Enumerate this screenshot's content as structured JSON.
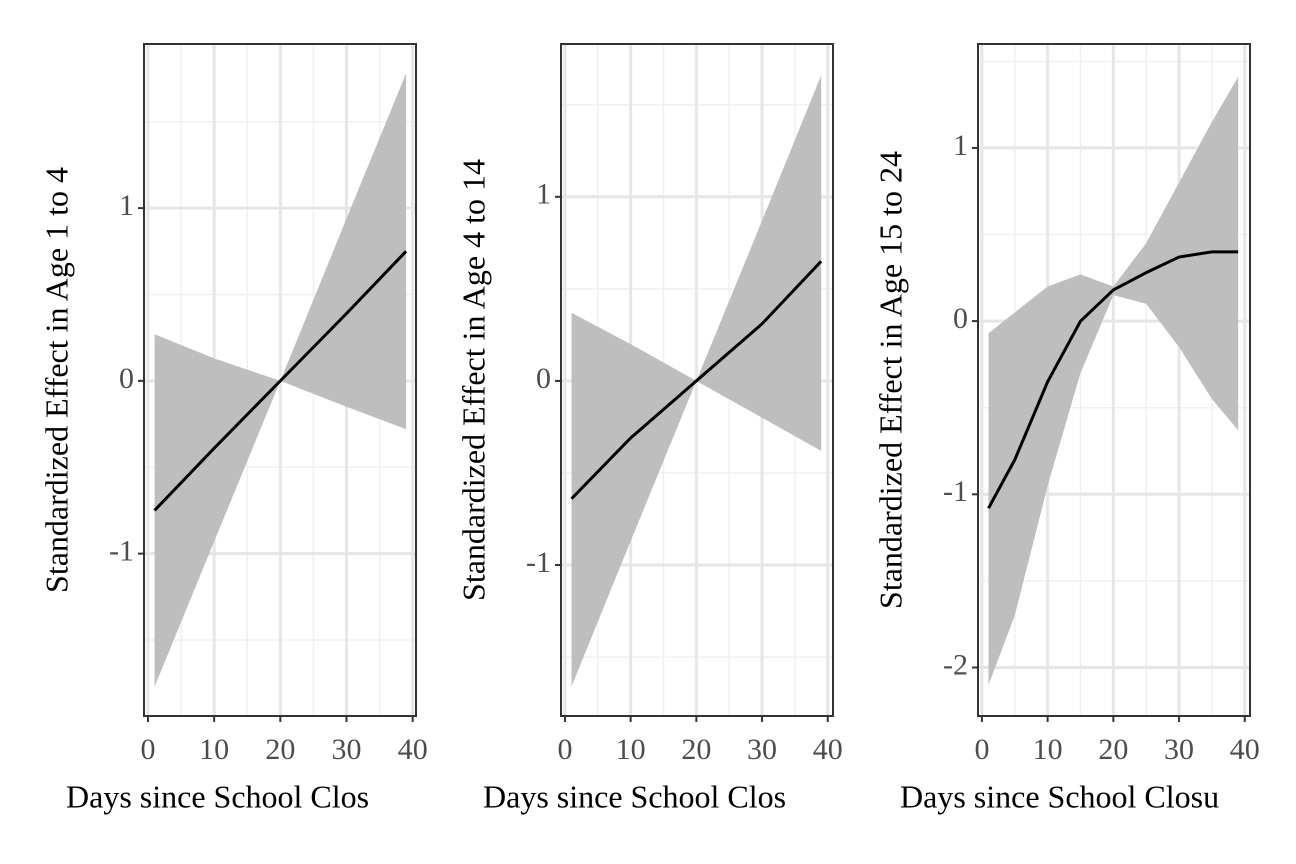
{
  "chart_data": [
    {
      "type": "line",
      "x_label": "Days since School Clos",
      "y_label": "Standardized Effect in Age 1 to 4",
      "x": [
        1,
        10,
        20,
        30,
        39
      ],
      "series": [
        {
          "color": "#000000",
          "band_color": "#bebebe",
          "values": [
            -0.75,
            -0.39,
            0,
            0.39,
            0.75
          ],
          "lower": [
            -1.77,
            -0.93,
            0,
            -0.15,
            -0.28
          ],
          "upper": [
            0.27,
            0.13,
            0,
            0.94,
            1.78
          ]
        }
      ],
      "xlim": [
        -0.6,
        40.5
      ],
      "ylim": [
        -1.94,
        1.95
      ],
      "xticks": [
        0,
        10,
        20,
        30,
        40
      ],
      "yticks": [
        -1,
        0,
        1
      ],
      "xminor": [
        5,
        15,
        25,
        35
      ],
      "yminor": [
        -1.5,
        -0.5,
        0.5,
        1.5
      ],
      "grid": true
    },
    {
      "type": "line",
      "x_label": "Days since School Clos",
      "y_label": "Standardized Effect in Age 4 to 14",
      "x": [
        1,
        10,
        20,
        30,
        39
      ],
      "series": [
        {
          "color": "#000000",
          "band_color": "#bebebe",
          "values": [
            -0.64,
            -0.31,
            0,
            0.31,
            0.65
          ],
          "lower": [
            -1.66,
            -0.87,
            0,
            -0.2,
            -0.38
          ],
          "upper": [
            0.37,
            0.2,
            0,
            0.87,
            1.66
          ]
        }
      ],
      "xlim": [
        -0.6,
        40.8
      ],
      "ylim": [
        -1.82,
        1.83
      ],
      "xticks": [
        0,
        10,
        20,
        30,
        40
      ],
      "yticks": [
        -1,
        0,
        1
      ],
      "xminor": [
        5,
        15,
        25,
        35
      ],
      "yminor": [
        -1.5,
        -0.5,
        0.5,
        1.5
      ],
      "grid": true
    },
    {
      "type": "line",
      "x_label": "Days since School Closu",
      "y_label": "Standardized Effect in Age 15 to 24",
      "x": [
        1,
        5,
        10,
        15,
        20,
        25,
        30,
        35,
        39
      ],
      "series": [
        {
          "color": "#000000",
          "band_color": "#bebebe",
          "values": [
            -1.08,
            -0.8,
            -0.35,
            0.0,
            0.18,
            0.28,
            0.37,
            0.4,
            0.4
          ],
          "lower": [
            -2.1,
            -1.7,
            -0.95,
            -0.3,
            0.15,
            0.1,
            -0.15,
            -0.45,
            -0.63
          ],
          "upper": [
            -0.07,
            0.05,
            0.2,
            0.27,
            0.2,
            0.45,
            0.8,
            1.15,
            1.41
          ]
        }
      ],
      "xlim": [
        -0.6,
        40.8
      ],
      "ylim": [
        -2.28,
        1.6
      ],
      "xticks": [
        0,
        10,
        20,
        30,
        40
      ],
      "yticks": [
        -2,
        -1,
        0,
        1
      ],
      "xminor": [
        5,
        15,
        25,
        35
      ],
      "yminor": [
        -1.5,
        -0.5,
        0.5,
        1.5
      ],
      "grid": true
    }
  ]
}
